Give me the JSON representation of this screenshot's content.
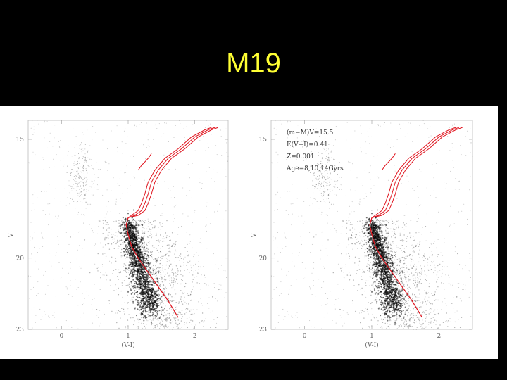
{
  "slide": {
    "title": "M19"
  },
  "colors": {
    "background": "#000000",
    "title": "#ffff33",
    "isochrone": "#e0141e",
    "stars": "#000000"
  },
  "chart_data": [
    {
      "type": "scatter",
      "title": "",
      "xlabel": "(V-I)",
      "ylabel": "V",
      "xlim": [
        -0.5,
        2.5
      ],
      "ylim": [
        23,
        14.2
      ],
      "y_inverted": true,
      "xticks": [
        "0",
        "1",
        "2"
      ],
      "yticks": [
        "15",
        "20",
        "23"
      ],
      "annotations": [],
      "series": [
        {
          "kind": "isochrone",
          "x": [
            1.75,
            1.6,
            1.45,
            1.3,
            1.15,
            1.05,
            1.0,
            0.97,
            1.0,
            1.1,
            1.2,
            1.25,
            1.3,
            1.35,
            1.45,
            1.6,
            1.8,
            2.0,
            2.2,
            2.3
          ],
          "y": [
            22.5,
            21.8,
            21.2,
            20.6,
            20.0,
            19.5,
            19.0,
            18.6,
            18.3,
            18.2,
            18.0,
            17.7,
            17.3,
            16.8,
            16.3,
            15.8,
            15.4,
            14.9,
            14.6,
            14.5
          ]
        },
        {
          "kind": "horizontal-branch",
          "x": [
            1.15,
            1.2,
            1.25,
            1.3,
            1.35
          ],
          "y": [
            16.3,
            16.1,
            15.95,
            15.8,
            15.6
          ]
        }
      ]
    },
    {
      "type": "scatter",
      "title": "",
      "xlabel": "(V-I)",
      "ylabel": "V",
      "xlim": [
        -0.5,
        2.5
      ],
      "ylim": [
        23,
        14.2
      ],
      "y_inverted": true,
      "xticks": [
        "0",
        "1",
        "2"
      ],
      "yticks": [
        "15",
        "20",
        "23"
      ],
      "annotations": [
        "(m−M)V=15.5",
        "E(V−I)=0.41",
        "Z=0.001",
        "Age=8,10,14Gyrs"
      ],
      "series": [
        {
          "kind": "isochrone",
          "x": [
            1.75,
            1.6,
            1.45,
            1.3,
            1.15,
            1.05,
            1.0,
            0.97,
            1.0,
            1.1,
            1.2,
            1.25,
            1.3,
            1.35,
            1.45,
            1.6,
            1.8,
            2.0,
            2.2,
            2.3
          ],
          "y": [
            22.5,
            21.8,
            21.2,
            20.6,
            20.0,
            19.5,
            19.0,
            18.6,
            18.3,
            18.2,
            18.0,
            17.7,
            17.3,
            16.8,
            16.3,
            15.8,
            15.4,
            14.9,
            14.6,
            14.5
          ]
        },
        {
          "kind": "horizontal-branch",
          "x": [
            1.15,
            1.2,
            1.25,
            1.3,
            1.35
          ],
          "y": [
            16.3,
            16.1,
            15.95,
            15.8,
            15.6
          ]
        }
      ]
    }
  ]
}
